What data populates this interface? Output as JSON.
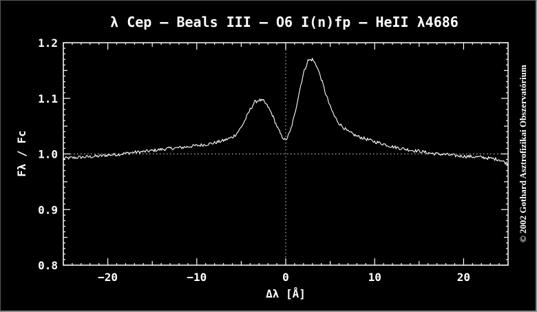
{
  "chart_data": {
    "type": "line",
    "title": "λ Cep – Beals III – O6 I(n)fp – HeII λ4686",
    "xlabel": "Δλ  [Å]",
    "ylabel": "Fλ / Fc",
    "xlim": [
      -25,
      25
    ],
    "ylim": [
      0.8,
      1.2
    ],
    "x_ticks": [
      -20,
      -10,
      0,
      10,
      20
    ],
    "x_tick_labels": [
      "−20",
      "−10",
      "0",
      "10",
      "20"
    ],
    "y_ticks": [
      0.8,
      0.9,
      1.0,
      1.1,
      1.2
    ],
    "y_tick_labels": [
      "0.8",
      "0.9",
      "1.0",
      "1.1",
      "1.2"
    ],
    "reference_lines": {
      "y": 1.0,
      "x": 0
    },
    "series": [
      {
        "x": [
          -25,
          -24,
          -23,
          -22,
          -21,
          -20,
          -19,
          -18,
          -17,
          -16,
          -15,
          -14,
          -13,
          -12,
          -11,
          -10,
          -9,
          -8,
          -7,
          -6,
          -5.5,
          -5,
          -4.5,
          -4,
          -3.5,
          -3,
          -2.5,
          -2,
          -1.5,
          -1,
          -0.5,
          0,
          0.5,
          1,
          1.5,
          2,
          2.5,
          3,
          3.5,
          4,
          4.5,
          5,
          5.5,
          6,
          7,
          8,
          9,
          10,
          11,
          12,
          13,
          14,
          15,
          16,
          17,
          18,
          19,
          20,
          21,
          22,
          23,
          24,
          25
        ],
        "y": [
          0.992,
          0.993,
          0.994,
          0.995,
          0.996,
          0.998,
          0.999,
          1.001,
          1.003,
          1.004,
          1.006,
          1.008,
          1.01,
          1.011,
          1.013,
          1.015,
          1.017,
          1.02,
          1.024,
          1.03,
          1.037,
          1.048,
          1.063,
          1.08,
          1.093,
          1.097,
          1.095,
          1.085,
          1.07,
          1.05,
          1.033,
          1.024,
          1.04,
          1.07,
          1.11,
          1.145,
          1.168,
          1.17,
          1.158,
          1.135,
          1.108,
          1.085,
          1.067,
          1.055,
          1.04,
          1.032,
          1.027,
          1.022,
          1.018,
          1.013,
          1.01,
          1.007,
          1.005,
          1.002,
          1.0,
          0.999,
          0.997,
          0.996,
          0.995,
          0.994,
          0.992,
          0.99,
          0.982
        ]
      }
    ]
  },
  "copyright": "© 2002 Gothard Asztrofizikai Obszervatórium"
}
